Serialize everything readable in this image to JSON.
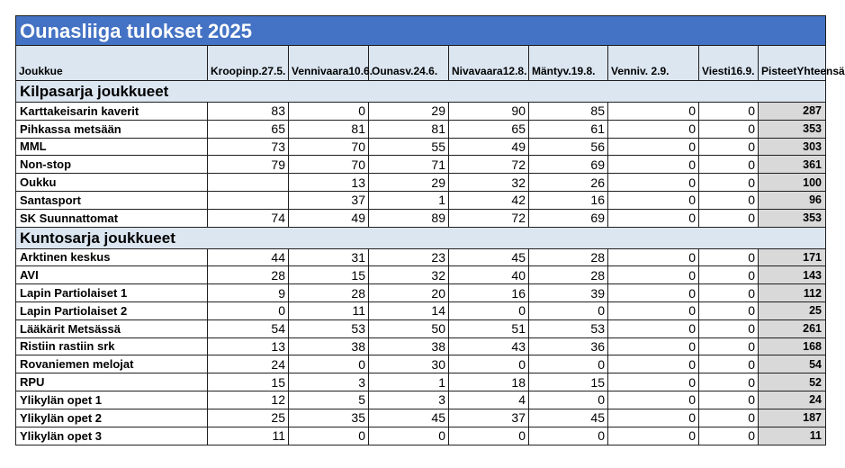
{
  "title": "Ounasliiga tulokset 2025",
  "header": {
    "team": "Joukkue",
    "cols": [
      {
        "line1": "Kroopinp.",
        "line2": "27.5."
      },
      {
        "line1": "Vennivaara",
        "line2": "10.6."
      },
      {
        "line1": "Ounasv.",
        "line2": "24.6."
      },
      {
        "line1": "Nivavaara",
        "line2": "12.8."
      },
      {
        "line1": "Mäntyv.",
        "line2": "19.8."
      },
      {
        "line1": "",
        "line2": "Venniv. 2.9."
      },
      {
        "line1": "Viesti",
        "line2": "16.9."
      }
    ],
    "total": {
      "line1": "Pisteet",
      "line2": "Yhteensä"
    }
  },
  "sections": [
    {
      "title": "Kilpasarja joukkueet",
      "rows": [
        {
          "name": "Karttakeisarin kaverit",
          "values": [
            "83",
            "0",
            "29",
            "90",
            "85",
            "0",
            "0"
          ],
          "total": "287"
        },
        {
          "name": "Pihkassa metsään",
          "values": [
            "65",
            "81",
            "81",
            "65",
            "61",
            "0",
            "0"
          ],
          "total": "353"
        },
        {
          "name": "MML",
          "values": [
            "73",
            "70",
            "55",
            "49",
            "56",
            "0",
            "0"
          ],
          "total": "303"
        },
        {
          "name": "Non-stop",
          "values": [
            "79",
            "70",
            "71",
            "72",
            "69",
            "0",
            "0"
          ],
          "total": "361"
        },
        {
          "name": "Oukku",
          "values": [
            "",
            "13",
            "29",
            "32",
            "26",
            "0",
            "0"
          ],
          "total": "100"
        },
        {
          "name": "Santasport",
          "values": [
            "",
            "37",
            "1",
            "42",
            "16",
            "0",
            "0"
          ],
          "total": "96"
        },
        {
          "name": "SK Suunnattomat",
          "values": [
            "74",
            "49",
            "89",
            "72",
            "69",
            "0",
            "0"
          ],
          "total": "353"
        }
      ]
    },
    {
      "title": "Kuntosarja joukkueet",
      "rows": [
        {
          "name": "Arktinen keskus",
          "values": [
            "44",
            "31",
            "23",
            "45",
            "28",
            "0",
            "0"
          ],
          "total": "171"
        },
        {
          "name": "AVI",
          "values": [
            "28",
            "15",
            "32",
            "40",
            "28",
            "0",
            "0"
          ],
          "total": "143"
        },
        {
          "name": "Lapin Partiolaiset 1",
          "values": [
            "9",
            "28",
            "20",
            "16",
            "39",
            "0",
            "0"
          ],
          "total": "112"
        },
        {
          "name": "Lapin Partiolaiset 2",
          "values": [
            "0",
            "11",
            "14",
            "0",
            "0",
            "0",
            "0"
          ],
          "total": "25"
        },
        {
          "name": "Lääkärit Metsässä",
          "values": [
            "54",
            "53",
            "50",
            "51",
            "53",
            "0",
            "0"
          ],
          "total": "261"
        },
        {
          "name": "Ristiin rastiin srk",
          "values": [
            "13",
            "38",
            "38",
            "43",
            "36",
            "0",
            "0"
          ],
          "total": "168"
        },
        {
          "name": "Rovaniemen melojat",
          "values": [
            "24",
            "0",
            "30",
            "0",
            "0",
            "0",
            "0"
          ],
          "total": "54"
        },
        {
          "name": "RPU",
          "values": [
            "15",
            "3",
            "1",
            "18",
            "15",
            "0",
            "0"
          ],
          "total": "52"
        },
        {
          "name": "Ylikylän opet 1",
          "values": [
            "12",
            "5",
            "3",
            "4",
            "0",
            "0",
            "0"
          ],
          "total": "24"
        },
        {
          "name": "Ylikylän opet 2",
          "values": [
            "25",
            "35",
            "45",
            "37",
            "45",
            "0",
            "0"
          ],
          "total": "187"
        },
        {
          "name": "Ylikylän opet 3",
          "values": [
            "11",
            "0",
            "0",
            "0",
            "0",
            "0",
            "0"
          ],
          "total": "11"
        }
      ]
    }
  ]
}
